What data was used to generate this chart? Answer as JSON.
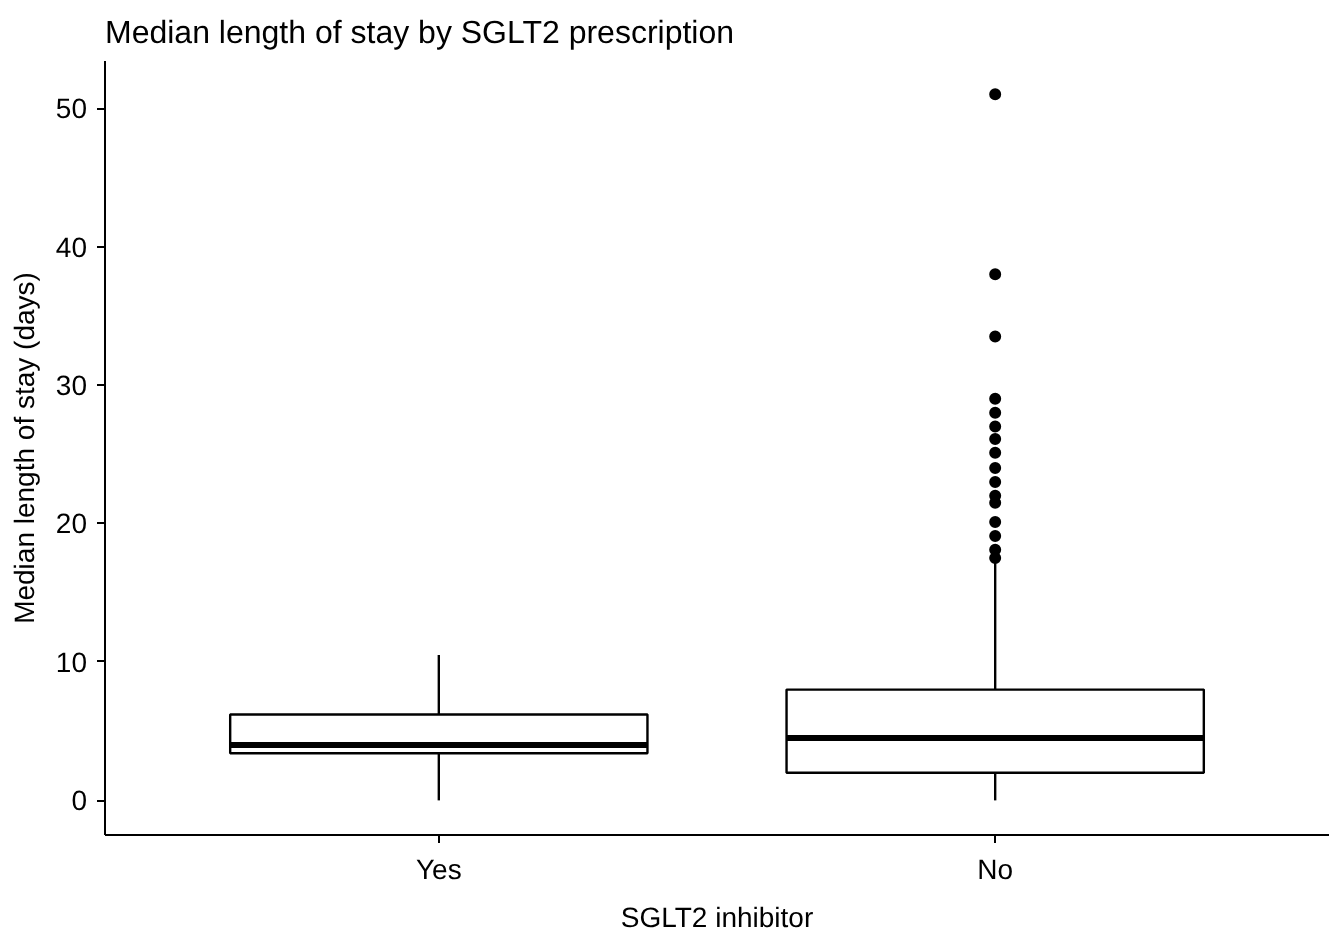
{
  "chart_data": {
    "type": "box",
    "title": "Median length of stay by SGLT2 prescription",
    "xlabel": "SGLT2 inhibitor",
    "ylabel": "Median length of stay (days)",
    "categories": [
      "Yes",
      "No"
    ],
    "boxes": [
      {
        "low": 0,
        "q1": 3.4,
        "median": 4.0,
        "q3": 6.2,
        "high": 10.5
      },
      {
        "low": 0,
        "q1": 2.0,
        "median": 4.5,
        "q3": 8.0,
        "high": 17.2,
        "outliers": [
          17.5,
          18.1,
          19.1,
          20.1,
          21.5,
          22.0,
          23.0,
          24.0,
          25.1,
          26.1,
          27.0,
          28.0,
          29.0,
          33.5,
          38.0,
          51.0
        ]
      }
    ],
    "color": "#ffffff",
    "ylim": [
      -2.5,
      53.4
    ],
    "yticks": [
      0,
      10,
      20,
      30,
      40,
      50
    ],
    "grid": false
  }
}
